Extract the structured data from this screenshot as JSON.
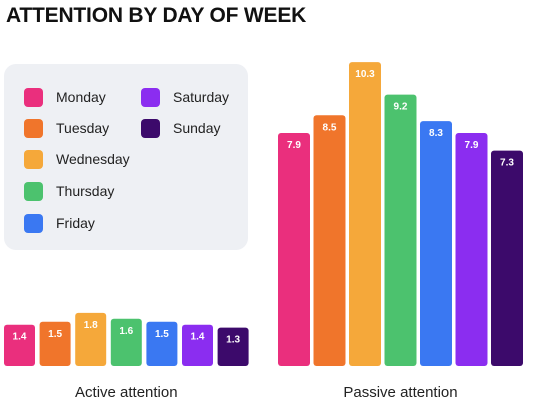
{
  "chart_data": {
    "type": "bar",
    "title": "ATTENTION BY DAY OF WEEK",
    "legend_position": "top-left",
    "grid": false,
    "groups": [
      {
        "name": "Active attention",
        "categories": [
          "Monday",
          "Tuesday",
          "Wednesday",
          "Thursday",
          "Friday",
          "Saturday",
          "Sunday"
        ],
        "values": [
          1.4,
          1.5,
          1.8,
          1.6,
          1.5,
          1.4,
          1.3
        ],
        "labels": [
          "1.4",
          "1.5",
          "1.8",
          "1.6",
          "1.5",
          "1.4",
          "1.3"
        ]
      },
      {
        "name": "Passive attention",
        "categories": [
          "Monday",
          "Tuesday",
          "Wednesday",
          "Thursday",
          "Friday",
          "Saturday",
          "Sunday"
        ],
        "values": [
          7.9,
          8.5,
          10.3,
          9.2,
          8.3,
          7.9,
          7.3
        ],
        "labels": [
          "7.9",
          "8.5",
          "10.3",
          "9.2",
          "8.3",
          "7.9",
          "7.3"
        ]
      }
    ],
    "legend": [
      {
        "label": "Monday",
        "color": "#ea2f7d"
      },
      {
        "label": "Tuesday",
        "color": "#f0752b"
      },
      {
        "label": "Wednesday",
        "color": "#f5a83a"
      },
      {
        "label": "Thursday",
        "color": "#4cc26e"
      },
      {
        "label": "Friday",
        "color": "#3a78f2"
      },
      {
        "label": "Saturday",
        "color": "#8b2df0"
      },
      {
        "label": "Sunday",
        "color": "#3c0a6b"
      }
    ]
  }
}
